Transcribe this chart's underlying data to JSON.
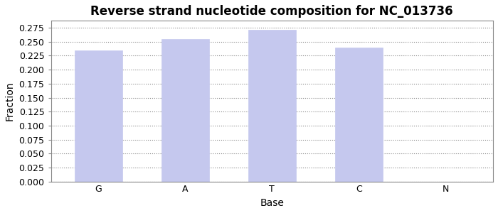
{
  "title": "Reverse strand nucleotide composition for NC_013736",
  "categories": [
    "G",
    "A",
    "T",
    "C",
    "N"
  ],
  "values": [
    0.235,
    0.255,
    0.271,
    0.239,
    0.0
  ],
  "bar_color": "#c5c8ee",
  "bar_edgecolor": "#c5c8ee",
  "xlabel": "Base",
  "ylabel": "Fraction",
  "ylim": [
    0.0,
    0.2875
  ],
  "yticks": [
    0.0,
    0.025,
    0.05,
    0.075,
    0.1,
    0.125,
    0.15,
    0.175,
    0.2,
    0.225,
    0.25,
    0.275
  ],
  "title_fontsize": 12,
  "axis_fontsize": 10,
  "tick_fontsize": 9,
  "grid_color": "#888888",
  "background_color": "#ffffff",
  "spine_color": "#888888"
}
